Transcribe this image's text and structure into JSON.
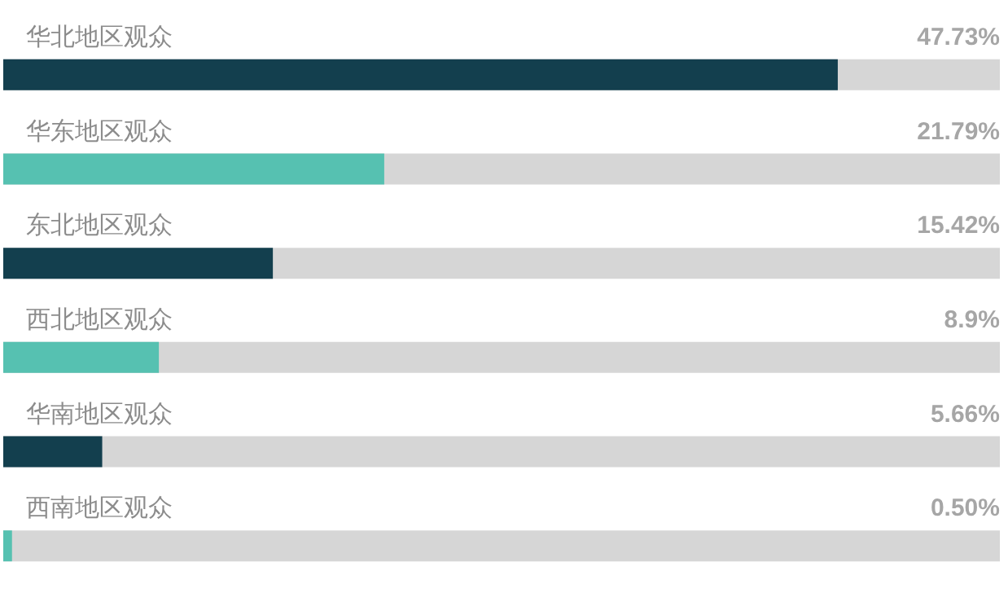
{
  "chart_data": {
    "type": "bar",
    "orientation": "horizontal",
    "categories": [
      "华北地区观众",
      "华东地区观众",
      "东北地区观众",
      "西北地区观众",
      "华南地区观众",
      "西南地区观众"
    ],
    "values": [
      47.73,
      21.79,
      15.42,
      8.9,
      5.66,
      0.5
    ],
    "value_labels": [
      "47.73%",
      "21.79%",
      "15.42%",
      "8.9%",
      "5.66%",
      "0.50%"
    ],
    "colors": [
      "#133f4e",
      "#56c1b1",
      "#133f4e",
      "#56c1b1",
      "#133f4e",
      "#56c1b1"
    ],
    "xlim": [
      0,
      57
    ]
  }
}
